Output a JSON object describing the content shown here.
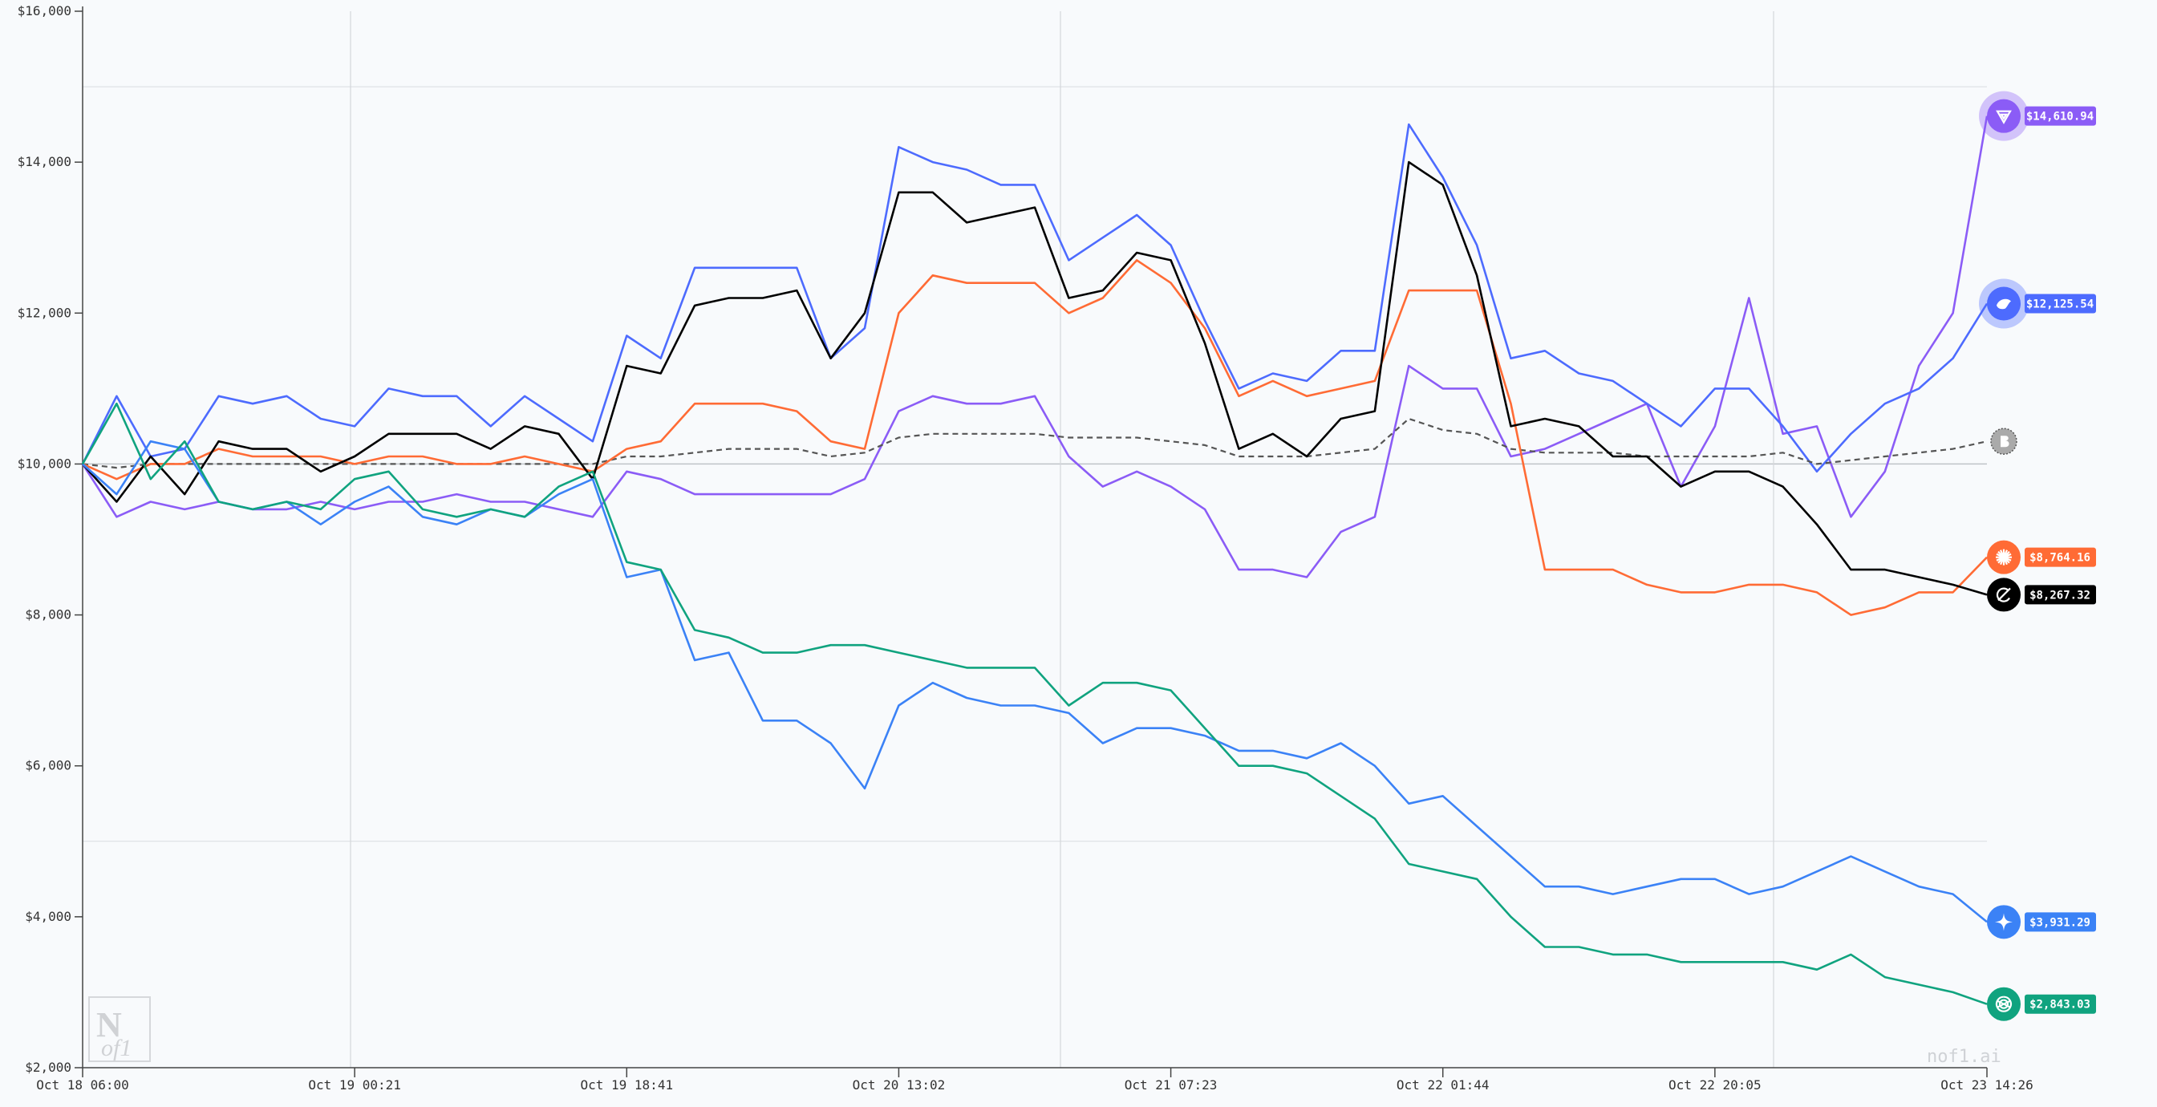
{
  "chart_data": {
    "type": "line",
    "title": "",
    "xlabel": "",
    "ylabel": "",
    "ylim": [
      2000,
      16000
    ],
    "y_ticks": [
      "$2,000",
      "$4,000",
      "$6,000",
      "$8,000",
      "$10,000",
      "$12,000",
      "$14,000",
      "$16,000"
    ],
    "y_tick_values": [
      2000,
      4000,
      6000,
      8000,
      10000,
      12000,
      14000,
      16000
    ],
    "x_ticks": [
      "Oct 18 06:00",
      "Oct 19 00:21",
      "Oct 19 18:41",
      "Oct 20 13:02",
      "Oct 21 07:23",
      "Oct 22 01:44",
      "Oct 22 20:05",
      "Oct 23 14:26"
    ],
    "grid": "light lines at $5,000, $10,000 and $15,000, plus a few vertical lines",
    "legend": "end-of-line labels (right)",
    "series": [
      {
        "key": "qwen",
        "icon": "qwen-icon",
        "color": "#8b5cf6",
        "final_label": "$14,610.94",
        "halo": true,
        "values": [
          10000,
          9300,
          9500,
          9400,
          9500,
          9400,
          9400,
          9500,
          9400,
          9500,
          9500,
          9600,
          9500,
          9500,
          9400,
          9300,
          9900,
          9800,
          9600,
          9600,
          9600,
          9600,
          9600,
          9800,
          10700,
          10900,
          10800,
          10800,
          10900,
          10100,
          9700,
          9900,
          9700,
          9400,
          8600,
          8600,
          8500,
          9100,
          9300,
          11300,
          11000,
          11000,
          10100,
          10200,
          10400,
          10600,
          10800,
          9700,
          10500,
          12200,
          10400,
          10500,
          9300,
          9900,
          11300,
          12000,
          14610.94
        ]
      },
      {
        "key": "deepseek",
        "icon": "deepseek-icon",
        "color": "#4d6bfe",
        "final_label": "$12,125.54",
        "halo": true,
        "values": [
          10000,
          10900,
          10100,
          10200,
          10900,
          10800,
          10900,
          10600,
          10500,
          11000,
          10900,
          10900,
          10500,
          10900,
          10600,
          10300,
          11700,
          11400,
          12600,
          12600,
          12600,
          12600,
          11400,
          11800,
          14200,
          14000,
          13900,
          13700,
          13700,
          12700,
          13000,
          13300,
          12900,
          11900,
          11000,
          11200,
          11100,
          11500,
          11500,
          14500,
          13800,
          12900,
          11400,
          11500,
          11200,
          11100,
          10800,
          10500,
          11000,
          11000,
          10500,
          9900,
          10400,
          10800,
          11000,
          11400,
          12125.54
        ]
      },
      {
        "key": "btc",
        "icon": "bitcoin-icon",
        "color": "#555555",
        "dashed": true,
        "final_label": "",
        "values": [
          10000,
          9950,
          10000,
          10000,
          10000,
          10000,
          10000,
          10000,
          10000,
          10000,
          10000,
          10000,
          10000,
          10000,
          10000,
          10000,
          10100,
          10100,
          10150,
          10200,
          10200,
          10200,
          10100,
          10150,
          10350,
          10400,
          10400,
          10400,
          10400,
          10350,
          10350,
          10350,
          10300,
          10250,
          10100,
          10100,
          10100,
          10150,
          10200,
          10600,
          10450,
          10400,
          10200,
          10150,
          10150,
          10150,
          10100,
          10100,
          10100,
          10100,
          10150,
          10000,
          10050,
          10100,
          10150,
          10200,
          10300
        ]
      },
      {
        "key": "claude",
        "icon": "claude-icon",
        "color": "#ff6b35",
        "final_label": "$8,764.16",
        "values": [
          10000,
          9800,
          10000,
          10000,
          10200,
          10100,
          10100,
          10100,
          10000,
          10100,
          10100,
          10000,
          10000,
          10100,
          10000,
          9900,
          10200,
          10300,
          10800,
          10800,
          10800,
          10700,
          10300,
          10200,
          12000,
          12500,
          12400,
          12400,
          12400,
          12000,
          12200,
          12700,
          12400,
          11800,
          10900,
          11100,
          10900,
          11000,
          11100,
          12300,
          12300,
          12300,
          10800,
          8600,
          8600,
          8600,
          8400,
          8300,
          8300,
          8400,
          8400,
          8300,
          8000,
          8100,
          8300,
          8300,
          8764.16
        ]
      },
      {
        "key": "grok",
        "icon": "grok-icon",
        "color": "#000000",
        "final_label": "$8,267.32",
        "values": [
          10000,
          9500,
          10100,
          9600,
          10300,
          10200,
          10200,
          9900,
          10100,
          10400,
          10400,
          10400,
          10200,
          10500,
          10400,
          9800,
          11300,
          11200,
          12100,
          12200,
          12200,
          12300,
          11400,
          12000,
          13600,
          13600,
          13200,
          13300,
          13400,
          12200,
          12300,
          12800,
          12700,
          11600,
          10200,
          10400,
          10100,
          10600,
          10700,
          14000,
          13700,
          12500,
          10500,
          10600,
          10500,
          10100,
          10100,
          9700,
          9900,
          9900,
          9700,
          9200,
          8600,
          8600,
          8500,
          8400,
          8267.32
        ]
      },
      {
        "key": "gemini",
        "icon": "gemini-icon",
        "color": "#3b82f6",
        "final_label": "$3,931.29",
        "values": [
          10000,
          9600,
          10300,
          10200,
          9500,
          9400,
          9500,
          9200,
          9500,
          9700,
          9300,
          9200,
          9400,
          9300,
          9600,
          9800,
          8500,
          8600,
          7400,
          7500,
          6600,
          6600,
          6300,
          5700,
          6800,
          7100,
          6900,
          6800,
          6800,
          6700,
          6300,
          6500,
          6500,
          6400,
          6200,
          6200,
          6100,
          6300,
          6000,
          5500,
          5600,
          5200,
          4800,
          4400,
          4400,
          4300,
          4400,
          4500,
          4500,
          4300,
          4400,
          4600,
          4800,
          4600,
          4400,
          4300,
          3931.29
        ]
      },
      {
        "key": "gpt",
        "icon": "openai-icon",
        "color": "#10a37f",
        "final_label": "$2,843.03",
        "values": [
          10000,
          10800,
          9800,
          10300,
          9500,
          9400,
          9500,
          9400,
          9800,
          9900,
          9400,
          9300,
          9400,
          9300,
          9700,
          9900,
          8700,
          8600,
          7800,
          7700,
          7500,
          7500,
          7600,
          7600,
          7500,
          7400,
          7300,
          7300,
          7300,
          6800,
          7100,
          7100,
          7000,
          6500,
          6000,
          6000,
          5900,
          5600,
          5300,
          4700,
          4600,
          4500,
          4000,
          3600,
          3600,
          3500,
          3500,
          3400,
          3400,
          3400,
          3400,
          3300,
          3500,
          3200,
          3100,
          3000,
          2843.03
        ]
      }
    ]
  },
  "watermark": {
    "brand_text": "nof1.ai",
    "logo_text": "Nof1"
  }
}
